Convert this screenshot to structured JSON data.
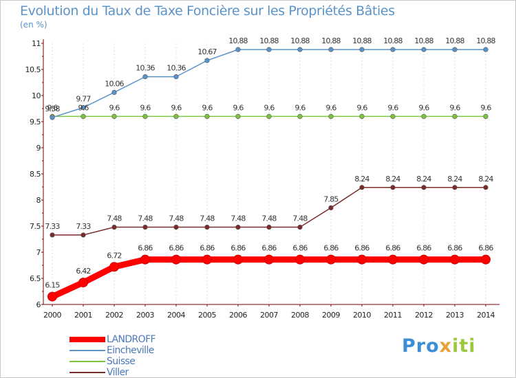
{
  "title": "Evolution du Taux de Taxe Foncière sur les Propriétés Bâties",
  "subtitle": "(en %)",
  "logo": {
    "part1": "Pro",
    "part2": "x",
    "part3": "iti"
  },
  "colors": {
    "title": "#5b93c9",
    "axis": "#7a0000",
    "tick_text": "#222222",
    "value_text": "#333333",
    "grid": "#dddddd"
  },
  "chart_data": {
    "type": "line",
    "title": "Evolution du Taux de Taxe Foncière sur les Propriétés Bâties",
    "ylabel": "(en %)",
    "xlabel": "",
    "x": [
      2000,
      2001,
      2002,
      2003,
      2004,
      2005,
      2006,
      2007,
      2008,
      2009,
      2010,
      2011,
      2012,
      2013,
      2014
    ],
    "ylim": [
      6,
      11
    ],
    "yticks": [
      6,
      6.5,
      7,
      7.5,
      8,
      8.5,
      9,
      9.5,
      10,
      10.5,
      11
    ],
    "legend_position": "bottom-left",
    "series": [
      {
        "name": "LANDROFF",
        "color": "#ff0000",
        "values": [
          6.15,
          6.42,
          6.72,
          6.86,
          6.86,
          6.86,
          6.86,
          6.86,
          6.86,
          6.86,
          6.86,
          6.86,
          6.86,
          6.86,
          6.86
        ],
        "labels": [
          "6.15",
          "6.42",
          "6.72",
          "6.86",
          "6.86",
          "6.86",
          "6.86",
          "6.86",
          "6.86",
          "6.86",
          "6.86",
          "6.86",
          "6.86",
          "6.86",
          "6.86"
        ]
      },
      {
        "name": "Eincheville",
        "color": "#5b93c9",
        "values": [
          9.58,
          9.77,
          10.06,
          10.36,
          10.36,
          10.67,
          10.88,
          10.88,
          10.88,
          10.88,
          10.88,
          10.88,
          10.88,
          10.88,
          10.88
        ],
        "labels": [
          "9.58",
          "9.77",
          "10.06",
          "10.36",
          "10.36",
          "10.67",
          "10.88",
          "10.88",
          "10.88",
          "10.88",
          "10.88",
          "10.88",
          "10.88",
          "10.88",
          "10.88"
        ]
      },
      {
        "name": "Suisse",
        "color": "#7cc43c",
        "values": [
          9.6,
          9.6,
          9.6,
          9.6,
          9.6,
          9.6,
          9.6,
          9.6,
          9.6,
          9.6,
          9.6,
          9.6,
          9.6,
          9.6,
          9.6
        ],
        "labels": [
          "9.6",
          "9.6",
          "9.6",
          "9.6",
          "9.6",
          "9.6",
          "9.6",
          "9.6",
          "9.6",
          "9.6",
          "9.6",
          "9.6",
          "9.6",
          "9.6",
          "9.6"
        ]
      },
      {
        "name": "Viller",
        "color": "#7b2a2a",
        "values": [
          7.33,
          7.33,
          7.48,
          7.48,
          7.48,
          7.48,
          7.48,
          7.48,
          7.48,
          7.85,
          8.24,
          8.24,
          8.24,
          8.24,
          8.24
        ],
        "labels": [
          "7.33",
          "7.33",
          "7.48",
          "7.48",
          "7.48",
          "7.48",
          "7.48",
          "7.48",
          "7.48",
          "7.85",
          "8.24",
          "8.24",
          "8.24",
          "8.24",
          "8.24"
        ]
      }
    ]
  }
}
